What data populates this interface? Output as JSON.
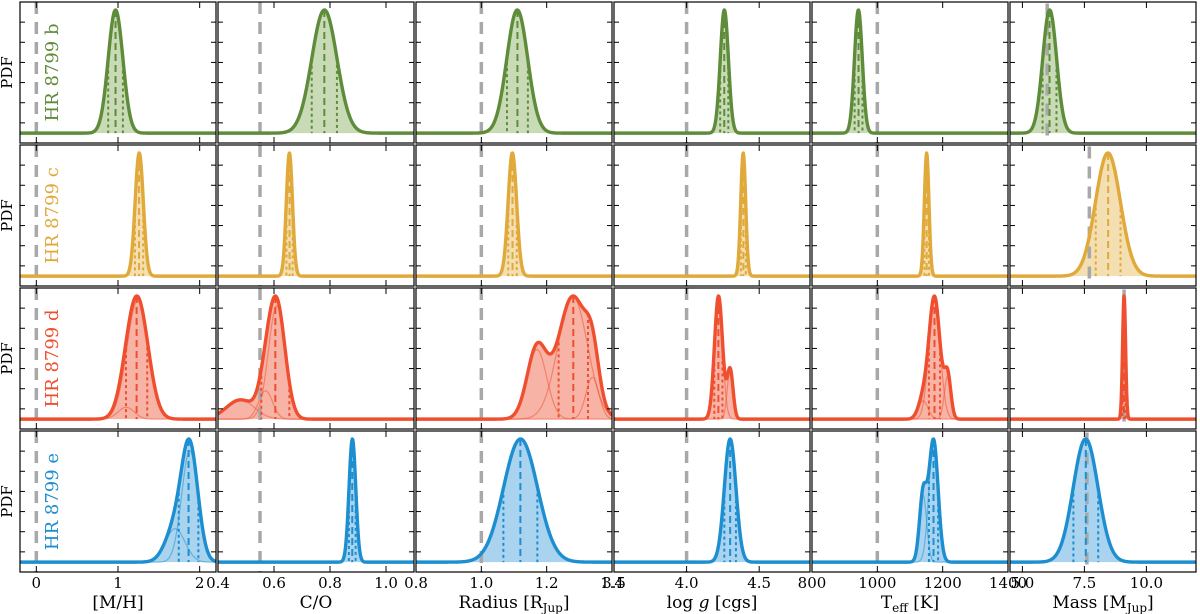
{
  "figure": {
    "y_axis_label": "PDF",
    "subplot_grid": "4 rows x 6 columns, shared x per column"
  },
  "chart_data": {
    "type": "area",
    "columns": [
      {
        "key": "mh",
        "xlabel": "[M/H]",
        "xlim": [
          -0.2,
          2.2
        ],
        "ticks": [
          0,
          1,
          2
        ],
        "tick_labels": [
          "0",
          "1",
          "2"
        ],
        "reference": 0.0
      },
      {
        "key": "co",
        "xlabel": "C/O",
        "xlim": [
          0.4,
          1.1
        ],
        "ticks": [
          0.4,
          0.6,
          0.8,
          1.0
        ],
        "tick_labels": [
          "0.4",
          "0.6",
          "0.8",
          "1.0"
        ],
        "reference": 0.55
      },
      {
        "key": "radius",
        "xlabel": "Radius [R",
        "xlabel_sub": "Jup",
        "xlabel_end": "]",
        "xlim": [
          0.8,
          1.4
        ],
        "ticks": [
          0.8,
          1.0,
          1.2,
          1.4
        ],
        "tick_labels": [
          "0.8",
          "1.0",
          "1.2",
          "1.4"
        ],
        "reference": 1.0
      },
      {
        "key": "logg",
        "xlabel": "log g [cgs]",
        "xlim": [
          3.5,
          4.85
        ],
        "ticks": [
          3.5,
          4.0,
          4.5
        ],
        "tick_labels": [
          "3.5",
          "4.0",
          "4.5"
        ],
        "reference": 4.0
      },
      {
        "key": "teff",
        "xlabel": "T",
        "xlabel_sub": "eff",
        "xlabel_end": " [K]",
        "xlim": [
          800,
          1400
        ],
        "ticks": [
          800,
          1000,
          1200,
          1400
        ],
        "tick_labels": [
          "800",
          "1000",
          "1200",
          "1400"
        ],
        "reference": 1000
      },
      {
        "key": "mass",
        "xlabel": "Mass [M",
        "xlabel_sub": "Jup",
        "xlabel_end": "]",
        "xlim": [
          4.5,
          12
        ],
        "ticks": [
          5.0,
          7.5,
          10.0
        ],
        "tick_labels": [
          "5.0",
          "7.5",
          "10.0"
        ],
        "reference": null
      }
    ],
    "rows": [
      {
        "label": "HR 8799 b",
        "color": "#5e8c3a",
        "fill": "#c9dbb6",
        "mass_reference": 6.0,
        "distributions": {
          "mh": [
            {
              "mu": 0.97,
              "sigma": 0.09,
              "amp": 1.0
            }
          ],
          "co": [
            {
              "mu": 0.78,
              "sigma": 0.045,
              "amp": 1.0
            }
          ],
          "radius": [
            {
              "mu": 1.11,
              "sigma": 0.032,
              "amp": 1.0
            }
          ],
          "logg": [
            {
              "mu": 4.26,
              "sigma": 0.028,
              "amp": 1.0
            }
          ],
          "teff": [
            {
              "mu": 942,
              "sigma": 12,
              "amp": 1.0
            }
          ],
          "mass": [
            {
              "mu": 6.1,
              "sigma": 0.28,
              "amp": 1.0
            }
          ]
        }
      },
      {
        "label": "HR 8799 c",
        "color": "#e0a93a",
        "fill": "#f3dfb2",
        "mass_reference": 7.7,
        "distributions": {
          "mh": [
            {
              "mu": 1.26,
              "sigma": 0.05,
              "amp": 1.0
            }
          ],
          "co": [
            {
              "mu": 0.655,
              "sigma": 0.011,
              "amp": 1.0
            }
          ],
          "radius": [
            {
              "mu": 1.095,
              "sigma": 0.013,
              "amp": 1.0
            }
          ],
          "logg": [
            {
              "mu": 4.39,
              "sigma": 0.017,
              "amp": 1.0
            }
          ],
          "teff": [
            {
              "mu": 1151,
              "sigma": 7,
              "amp": 1.0
            }
          ],
          "mass": [
            {
              "mu": 8.45,
              "sigma": 0.5,
              "amp": 1.0
            }
          ]
        }
      },
      {
        "label": "HR 8799 d",
        "color": "#f04f2f",
        "fill": "#f7b3a5",
        "mass_reference": 9.1,
        "distributions": {
          "mh": [
            {
              "mu": 1.24,
              "sigma": 0.13,
              "amp": 1.0
            },
            {
              "mu": 1.1,
              "sigma": 0.1,
              "amp": 0.1
            }
          ],
          "co": [
            {
              "mu": 0.61,
              "sigma": 0.03,
              "amp": 1.0
            },
            {
              "mu": 0.48,
              "sigma": 0.05,
              "amp": 0.17
            },
            {
              "mu": 0.57,
              "sigma": 0.025,
              "amp": 0.25
            }
          ],
          "radius": [
            {
              "mu": 1.28,
              "sigma": 0.045,
              "amp": 0.88
            },
            {
              "mu": 1.17,
              "sigma": 0.03,
              "amp": 0.5
            },
            {
              "mu": 1.34,
              "sigma": 0.02,
              "amp": 0.3
            }
          ],
          "logg": [
            {
              "mu": 4.22,
              "sigma": 0.028,
              "amp": 1.0
            },
            {
              "mu": 4.3,
              "sigma": 0.02,
              "amp": 0.4
            }
          ],
          "teff": [
            {
              "mu": 1175,
              "sigma": 17,
              "amp": 1.0
            },
            {
              "mu": 1215,
              "sigma": 10,
              "amp": 0.35
            },
            {
              "mu": 1140,
              "sigma": 15,
              "amp": 0.15
            }
          ],
          "mass": [
            {
              "mu": 9.1,
              "sigma": 0.06,
              "amp": 1.0
            }
          ]
        }
      },
      {
        "label": "HR 8799 e",
        "color": "#1d8fd0",
        "fill": "#a9d3ee",
        "mass_reference": 7.6,
        "distributions": {
          "mh": [
            {
              "mu": 1.88,
              "sigma": 0.1,
              "amp": 1.0
            },
            {
              "mu": 1.7,
              "sigma": 0.12,
              "amp": 0.3
            }
          ],
          "co": [
            {
              "mu": 0.88,
              "sigma": 0.012,
              "amp": 1.0
            }
          ],
          "radius": [
            {
              "mu": 1.12,
              "sigma": 0.052,
              "amp": 1.0
            }
          ],
          "logg": [
            {
              "mu": 4.3,
              "sigma": 0.04,
              "amp": 1.0
            }
          ],
          "teff": [
            {
              "mu": 1172,
              "sigma": 14,
              "amp": 1.0
            },
            {
              "mu": 1140,
              "sigma": 11,
              "amp": 0.55
            }
          ],
          "mass": [
            {
              "mu": 7.55,
              "sigma": 0.5,
              "amp": 1.0
            }
          ]
        }
      }
    ]
  }
}
